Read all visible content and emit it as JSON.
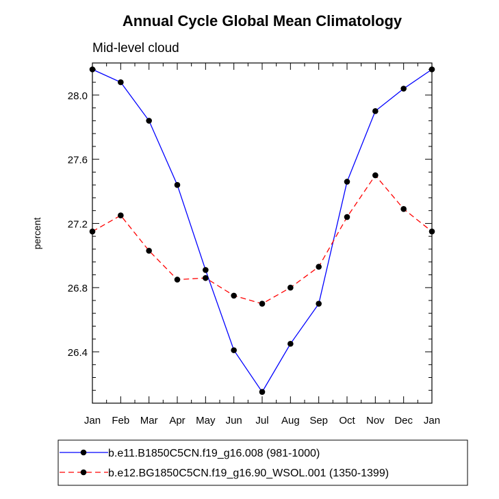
{
  "chart_data": {
    "type": "line",
    "title": "Annual Cycle Global Mean Climatology",
    "subtitle": "Mid-level cloud",
    "xlabel": "",
    "ylabel": "percent",
    "categories": [
      "Jan",
      "Feb",
      "Mar",
      "Apr",
      "May",
      "Jun",
      "Jul",
      "Aug",
      "Sep",
      "Oct",
      "Nov",
      "Dec",
      "Jan"
    ],
    "ylim": [
      26.08,
      28.2
    ],
    "yticks": [
      26.4,
      26.8,
      27.2,
      27.6,
      28.0
    ],
    "ytick_labels": [
      "26.4",
      "26.8",
      "27.2",
      "27.6",
      "28.0"
    ],
    "grid": false,
    "legend_position": "bottom",
    "series": [
      {
        "name": "b.e11.B1850C5CN.f19_g16.008 (981-1000)",
        "color": "#0000ff",
        "dash": "solid",
        "values": [
          28.16,
          28.08,
          27.84,
          27.44,
          26.91,
          26.41,
          26.15,
          26.45,
          26.7,
          27.46,
          27.9,
          28.04,
          28.16
        ]
      },
      {
        "name": "b.e12.BG1850C5CN.f19_g16.90_WSOL.001 (1350-1399)",
        "color": "#ff0000",
        "dash": "dashed",
        "values": [
          27.15,
          27.25,
          27.03,
          26.85,
          26.86,
          26.75,
          26.7,
          26.8,
          26.93,
          27.24,
          27.5,
          27.29,
          27.15
        ]
      }
    ]
  }
}
